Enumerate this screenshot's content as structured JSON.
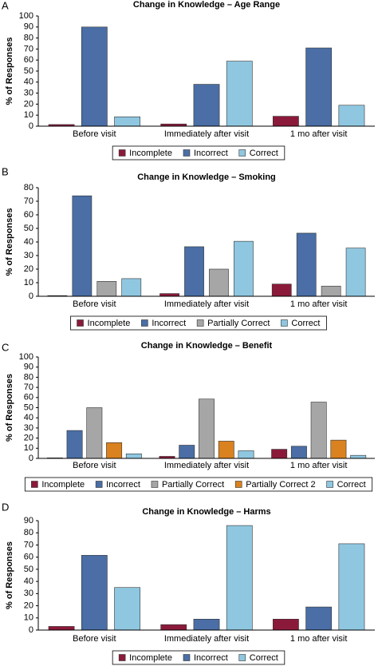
{
  "chart_data": [
    {
      "type": "bar",
      "panel": "A",
      "title": "Change in Knowledge – Age Range",
      "y_label": "% of Responses",
      "categories": [
        "Before visit",
        "Immediately after visit",
        "1 mo after visit"
      ],
      "series": [
        {
          "name": "Incomplete",
          "color": "#8b1a3a",
          "values": [
            1.5,
            2,
            9
          ]
        },
        {
          "name": "Incorrect",
          "color": "#4a6ea5",
          "values": [
            90,
            38,
            71
          ]
        },
        {
          "name": "Correct",
          "color": "#8fc7e0",
          "values": [
            8.5,
            59,
            19
          ]
        }
      ],
      "ylim": [
        0,
        100
      ],
      "yticks": [
        0,
        10,
        20,
        30,
        40,
        50,
        60,
        70,
        80,
        90,
        100
      ],
      "grid": false,
      "legend": "bottom"
    },
    {
      "type": "bar",
      "panel": "B",
      "title": "Change in Knowledge – Smoking",
      "y_label": "% of Responses",
      "categories": [
        "Before visit",
        "Immediately after visit",
        "1 mo after visit"
      ],
      "series": [
        {
          "name": "Incomplete",
          "color": "#8b1a3a",
          "values": [
            0.5,
            2,
            9
          ]
        },
        {
          "name": "Incorrect",
          "color": "#4a6ea5",
          "values": [
            74,
            36.5,
            46.5
          ]
        },
        {
          "name": "Partially Correct",
          "color": "#a6a6a6",
          "values": [
            11,
            20,
            7.5
          ]
        },
        {
          "name": "Correct",
          "color": "#8fc7e0",
          "values": [
            13,
            40.5,
            35.5
          ]
        }
      ],
      "ylim": [
        0,
        80
      ],
      "yticks": [
        0,
        10,
        20,
        30,
        40,
        50,
        60,
        70,
        80
      ],
      "grid": false,
      "legend": "bottom"
    },
    {
      "type": "bar",
      "panel": "C",
      "title": "Change in Knowledge – Benefit",
      "y_label": "% of Responses",
      "categories": [
        "Before visit",
        "Immediately after visit",
        "1 mo after visit"
      ],
      "series": [
        {
          "name": "Incomplete",
          "color": "#8b1a3a",
          "values": [
            0.5,
            2,
            9
          ]
        },
        {
          "name": "Incorrect",
          "color": "#4a6ea5",
          "values": [
            27.5,
            13,
            12
          ]
        },
        {
          "name": "Partially Correct",
          "color": "#a6a6a6",
          "values": [
            50,
            58.5,
            55.5
          ]
        },
        {
          "name": "Partially Correct 2",
          "color": "#d9821f",
          "values": [
            15.5,
            17,
            18
          ]
        },
        {
          "name": "Correct",
          "color": "#8fc7e0",
          "values": [
            4.5,
            7.5,
            3
          ]
        }
      ],
      "ylim": [
        0,
        100
      ],
      "yticks": [
        0,
        10,
        20,
        30,
        40,
        50,
        60,
        70,
        80,
        90,
        100
      ],
      "grid": false,
      "legend": "bottom"
    },
    {
      "type": "bar",
      "panel": "D",
      "title": "Change in Knowledge – Harms",
      "y_label": "% of Responses",
      "categories": [
        "Before visit",
        "Immediately after visit",
        "1 mo after visit"
      ],
      "series": [
        {
          "name": "Incomplete",
          "color": "#8b1a3a",
          "values": [
            3,
            4.5,
            9
          ]
        },
        {
          "name": "Incorrect",
          "color": "#4a6ea5",
          "values": [
            61.5,
            9,
            19
          ]
        },
        {
          "name": "Correct",
          "color": "#8fc7e0",
          "values": [
            35,
            86,
            71
          ]
        }
      ],
      "ylim": [
        0,
        90
      ],
      "yticks": [
        0,
        10,
        20,
        30,
        40,
        50,
        60,
        70,
        80,
        90
      ],
      "grid": false,
      "legend": "bottom"
    }
  ]
}
